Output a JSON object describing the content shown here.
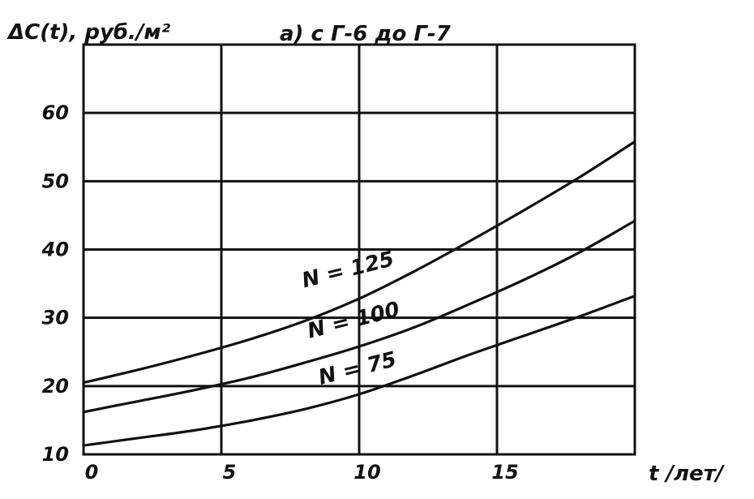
{
  "chart_data": {
    "type": "line",
    "title": "а) с Г-6 до Г-7",
    "ylabel": "ΔC(t), руб./м²",
    "xlabel": "t /лет/",
    "xlim": [
      0,
      20
    ],
    "ylim": [
      10,
      70
    ],
    "grid": true,
    "x_ticks": [
      "0",
      "5",
      "10",
      "15"
    ],
    "y_ticks": [
      "10",
      "20",
      "30",
      "40",
      "50",
      "60"
    ],
    "series": [
      {
        "name": "N = 125",
        "x": [
          0,
          2,
          4,
          6,
          8,
          10,
          12,
          14,
          16,
          18,
          20
        ],
        "values": [
          20.5,
          22.4,
          24.5,
          26.8,
          29.5,
          32.8,
          36.8,
          41.2,
          45.8,
          50.6,
          55.8
        ]
      },
      {
        "name": "N = 100",
        "x": [
          0,
          2,
          4,
          6,
          8,
          10,
          12,
          14,
          16,
          18,
          20
        ],
        "values": [
          16.2,
          17.8,
          19.4,
          21.2,
          23.4,
          25.8,
          28.6,
          32.0,
          35.6,
          39.6,
          44.2
        ]
      },
      {
        "name": "N = 75",
        "x": [
          0,
          2,
          4,
          6,
          8,
          10,
          12,
          14,
          16,
          18,
          20
        ],
        "values": [
          11.3,
          12.4,
          13.5,
          14.9,
          16.6,
          18.8,
          21.6,
          24.6,
          27.4,
          30.2,
          33.2
        ]
      }
    ]
  }
}
